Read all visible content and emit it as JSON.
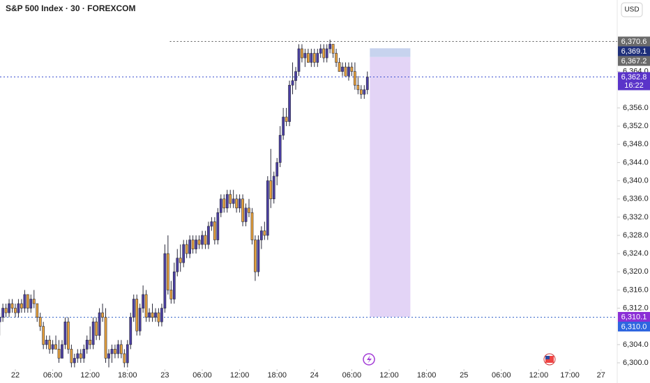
{
  "chart_data": {
    "type": "candlestick",
    "title": "S&P 500 Index · 30 · FOREXCOM",
    "currency": "USD",
    "up_color": "#4b3fa3",
    "down_color": "#e9a23b",
    "wick_color": "#2a2a3a",
    "xlim": [
      -2.46,
      96.6
    ],
    "xticks": [
      {
        "value": 0,
        "label": "22"
      },
      {
        "value": 6,
        "label": "06:00"
      },
      {
        "value": 12,
        "label": "12:00"
      },
      {
        "value": 18,
        "label": "18:00"
      },
      {
        "value": 24,
        "label": "23"
      },
      {
        "value": 30,
        "label": "06:00"
      },
      {
        "value": 36,
        "label": "12:00"
      },
      {
        "value": 42,
        "label": "18:00"
      },
      {
        "value": 48,
        "label": "24"
      },
      {
        "value": 54,
        "label": "06:00"
      },
      {
        "value": 60,
        "label": "12:00"
      },
      {
        "value": 66,
        "label": "18:00"
      },
      {
        "value": 72,
        "label": "25"
      },
      {
        "value": 78,
        "label": "06:00"
      },
      {
        "value": 84,
        "label": "12:00"
      },
      {
        "value": 89,
        "label": "17:00"
      },
      {
        "value": 94,
        "label": "27"
      }
    ],
    "ylim": [
      6298.93,
      6379.71
    ],
    "yticks": [
      {
        "value": 6300,
        "label": "6,300.0"
      },
      {
        "value": 6304,
        "label": "6,304.0"
      },
      {
        "value": 6312,
        "label": "6,312.0"
      },
      {
        "value": 6316,
        "label": "6,316.0"
      },
      {
        "value": 6320,
        "label": "6,320.0"
      },
      {
        "value": 6324,
        "label": "6,324.0"
      },
      {
        "value": 6328,
        "label": "6,328.0"
      },
      {
        "value": 6332,
        "label": "6,332.0"
      },
      {
        "value": 6336,
        "label": "6,336.0"
      },
      {
        "value": 6340,
        "label": "6,340.0"
      },
      {
        "value": 6344,
        "label": "6,344.0"
      },
      {
        "value": 6348,
        "label": "6,348.0"
      },
      {
        "value": 6352,
        "label": "6,352.0"
      },
      {
        "value": 6356,
        "label": "6,356.0"
      },
      {
        "value": 6364,
        "label": "6,364.0"
      }
    ],
    "x": [
      -2.5,
      -2,
      -1.5,
      -1,
      -0.5,
      0,
      0.5,
      1,
      1.5,
      2,
      2.5,
      3,
      3.5,
      4,
      4.5,
      5,
      5.5,
      6,
      6.5,
      7,
      7.5,
      8,
      8.5,
      9,
      9.5,
      10,
      10.5,
      11,
      11.5,
      12,
      12.5,
      13,
      13.5,
      14,
      14.5,
      15,
      15.5,
      16,
      16.5,
      17,
      17.5,
      18,
      18.5,
      19,
      19.5,
      20,
      20.5,
      21,
      21.5,
      22,
      22.5,
      23,
      23.5,
      24,
      24.5,
      25,
      25.5,
      26,
      26.5,
      27,
      27.5,
      28,
      28.5,
      29,
      29.5,
      30,
      30.5,
      31,
      31.5,
      32,
      32.5,
      33,
      33.5,
      34,
      34.5,
      35,
      35.5,
      36,
      36.5,
      37,
      37.5,
      38,
      38.5,
      39,
      39.5,
      40,
      40.5,
      41,
      41.5,
      42,
      42.5,
      43,
      43.5,
      44,
      44.5,
      45,
      45.5,
      46,
      46.5,
      47,
      47.5,
      48,
      48.5,
      49,
      49.5,
      50,
      50.5,
      51,
      51.5,
      52,
      52.5,
      53,
      53.5,
      54,
      54.5,
      55,
      55.5,
      56,
      56.5
    ],
    "candles": [
      [
        6309,
        6311,
        6306,
        6310
      ],
      [
        6310,
        6313,
        6309,
        6312
      ],
      [
        6312,
        6313,
        6310,
        6311
      ],
      [
        6311,
        6314,
        6310,
        6313
      ],
      [
        6313,
        6314,
        6311,
        6312
      ],
      [
        6312,
        6313,
        6310,
        6311
      ],
      [
        6311,
        6314,
        6310,
        6313
      ],
      [
        6313,
        6314,
        6311,
        6312
      ],
      [
        6312,
        6316,
        6311,
        6315
      ],
      [
        6315,
        6315,
        6311,
        6312
      ],
      [
        6312,
        6315,
        6311,
        6314
      ],
      [
        6314,
        6316,
        6312,
        6313
      ],
      [
        6313,
        6313,
        6309,
        6310
      ],
      [
        6310,
        6311,
        6307,
        6308
      ],
      [
        6308,
        6309,
        6303,
        6304
      ],
      [
        6304,
        6306,
        6303,
        6305
      ],
      [
        6305,
        6306,
        6302,
        6303
      ],
      [
        6303,
        6305,
        6302,
        6304
      ],
      [
        6304,
        6306,
        6303,
        6303
      ],
      [
        6303,
        6305,
        6300,
        6301
      ],
      [
        6301,
        6305,
        6301,
        6304
      ],
      [
        6304,
        6310,
        6303,
        6309
      ],
      [
        6309,
        6310,
        6302,
        6303
      ],
      [
        6303,
        6304,
        6299,
        6300
      ],
      [
        6300,
        6302,
        6299,
        6301
      ],
      [
        6301,
        6303,
        6300,
        6302
      ],
      [
        6302,
        6303,
        6300,
        6301
      ],
      [
        6301,
        6304,
        6300,
        6303
      ],
      [
        6303,
        6306,
        6302,
        6305
      ],
      [
        6305,
        6308,
        6303,
        6304
      ],
      [
        6304,
        6310,
        6303,
        6309
      ],
      [
        6309,
        6310,
        6305,
        6306
      ],
      [
        6306,
        6312,
        6305,
        6311
      ],
      [
        6311,
        6313,
        6309,
        6310
      ],
      [
        6310,
        6312,
        6300,
        6301
      ],
      [
        6301,
        6303,
        6299,
        6302
      ],
      [
        6302,
        6304,
        6300,
        6303
      ],
      [
        6303,
        6304,
        6301,
        6302
      ],
      [
        6302,
        6305,
        6301,
        6304
      ],
      [
        6304,
        6305,
        6301,
        6302
      ],
      [
        6302,
        6303,
        6299,
        6300
      ],
      [
        6300,
        6305,
        6299,
        6304
      ],
      [
        6304,
        6311,
        6303,
        6310
      ],
      [
        6310,
        6315,
        6309,
        6314
      ],
      [
        6314,
        6315,
        6306,
        6307
      ],
      [
        6307,
        6313,
        6306,
        6312
      ],
      [
        6312,
        6317,
        6311,
        6315
      ],
      [
        6315,
        6316,
        6309,
        6310
      ],
      [
        6310,
        6312,
        6309,
        6311
      ],
      [
        6311,
        6313,
        6309,
        6310
      ],
      [
        6310,
        6312,
        6309,
        6311
      ],
      [
        6311,
        6312,
        6308,
        6309
      ],
      [
        6309,
        6313,
        6308,
        6312
      ],
      [
        6312,
        6326,
        6311,
        6324
      ],
      [
        6324,
        6328,
        6315,
        6316
      ],
      [
        6316,
        6318,
        6313,
        6314
      ],
      [
        6314,
        6322,
        6313,
        6320
      ],
      [
        6320,
        6325,
        6319,
        6323
      ],
      [
        6323,
        6326,
        6320,
        6322
      ],
      [
        6322,
        6327,
        6321,
        6326
      ],
      [
        6326,
        6327,
        6323,
        6324
      ],
      [
        6324,
        6328,
        6323,
        6327
      ],
      [
        6327,
        6328,
        6324,
        6325
      ],
      [
        6325,
        6328,
        6324,
        6327
      ],
      [
        6327,
        6328,
        6325,
        6326
      ],
      [
        6326,
        6329,
        6325,
        6328
      ],
      [
        6328,
        6329,
        6325,
        6326
      ],
      [
        6326,
        6331,
        6325,
        6330
      ],
      [
        6330,
        6332,
        6329,
        6331
      ],
      [
        6331,
        6332,
        6326,
        6327
      ],
      [
        6327,
        6334,
        6326,
        6333
      ],
      [
        6333,
        6337,
        6332,
        6336
      ],
      [
        6336,
        6337,
        6333,
        6334
      ],
      [
        6334,
        6338,
        6333,
        6337
      ],
      [
        6337,
        6338,
        6334,
        6335
      ],
      [
        6335,
        6338,
        6334,
        6336
      ],
      [
        6336,
        6337,
        6333,
        6334
      ],
      [
        6334,
        6337,
        6333,
        6336
      ],
      [
        6336,
        6337,
        6330,
        6331
      ],
      [
        6331,
        6335,
        6330,
        6334
      ],
      [
        6334,
        6336,
        6332,
        6333
      ],
      [
        6333,
        6334,
        6326,
        6327
      ],
      [
        6327,
        6328,
        6318,
        6320
      ],
      [
        6320,
        6328,
        6319,
        6327
      ],
      [
        6327,
        6330,
        6325,
        6329
      ],
      [
        6329,
        6331,
        6327,
        6328
      ],
      [
        6328,
        6341,
        6327,
        6340
      ],
      [
        6340,
        6347,
        6334,
        6336
      ],
      [
        6336,
        6342,
        6335,
        6341
      ],
      [
        6341,
        6345,
        6339,
        6344
      ],
      [
        6344,
        6352,
        6343,
        6350
      ],
      [
        6350,
        6356,
        6349,
        6354
      ],
      [
        6354,
        6356,
        6352,
        6353
      ],
      [
        6353,
        6362,
        6352,
        6361
      ],
      [
        6361,
        6366,
        6359,
        6362
      ],
      [
        6362,
        6365,
        6360,
        6364
      ],
      [
        6364,
        6370,
        6363,
        6369
      ],
      [
        6369,
        6370,
        6366,
        6367
      ],
      [
        6367,
        6369,
        6365,
        6368
      ],
      [
        6368,
        6369,
        6366,
        6366
      ],
      [
        6366,
        6369,
        6365,
        6368
      ],
      [
        6368,
        6369,
        6365,
        6366
      ],
      [
        6366,
        6369,
        6365,
        6368
      ],
      [
        6368,
        6370,
        6367,
        6369
      ],
      [
        6369,
        6370,
        6366,
        6367
      ],
      [
        6367,
        6370,
        6366,
        6369
      ],
      [
        6369,
        6371,
        6368,
        6370
      ],
      [
        6370,
        6370,
        6367,
        6368
      ],
      [
        6368,
        6369,
        6365,
        6366
      ],
      [
        6366,
        6367,
        6364,
        6364
      ],
      [
        6364,
        6366,
        6363,
        6365
      ],
      [
        6365,
        6366,
        6363,
        6363
      ],
      [
        6363,
        6366,
        6362,
        6365
      ],
      [
        6365,
        6366,
        6363,
        6364
      ],
      [
        6364,
        6366,
        6360,
        6361
      ],
      [
        6361,
        6363,
        6359,
        6360
      ],
      [
        6360,
        6361,
        6358,
        6359
      ],
      [
        6359,
        6361,
        6358,
        6360
      ],
      [
        6360,
        6364,
        6359,
        6362.8
      ]
    ],
    "levels": [
      {
        "value": 6370.6,
        "color": "#555555",
        "from": 24.8
      },
      {
        "value": 6362.8,
        "color": "#3b4fd0",
        "from": -2.46
      },
      {
        "value": 6310.0,
        "color": "#2a5cc8",
        "from": -2.46
      }
    ],
    "position": {
      "x": [
        56.9,
        63.4
      ],
      "target": 6369.1,
      "entry": 6367.2,
      "stop": 6310.1,
      "target_color": "#c7d3ee",
      "stop_color": "#e3d4f6"
    },
    "price_labels": [
      {
        "value": 6370.6,
        "label": "6,370.6",
        "color": "#6b6b6b"
      },
      {
        "value": 6369.1,
        "label": "6,369.1",
        "color": "#1e2f7a"
      },
      {
        "value": 6367.2,
        "label": "6,367.2",
        "color": "#6b6b6b"
      },
      {
        "value": 6362.8,
        "label": "6,362.8",
        "color": "#5a34c9",
        "sub": "16:22"
      },
      {
        "value": 6310.1,
        "label": "6,310.1",
        "color": "#8b2fd6"
      },
      {
        "value": 6310.0,
        "label": "6,310.0",
        "color": "#2f66e0"
      }
    ]
  }
}
